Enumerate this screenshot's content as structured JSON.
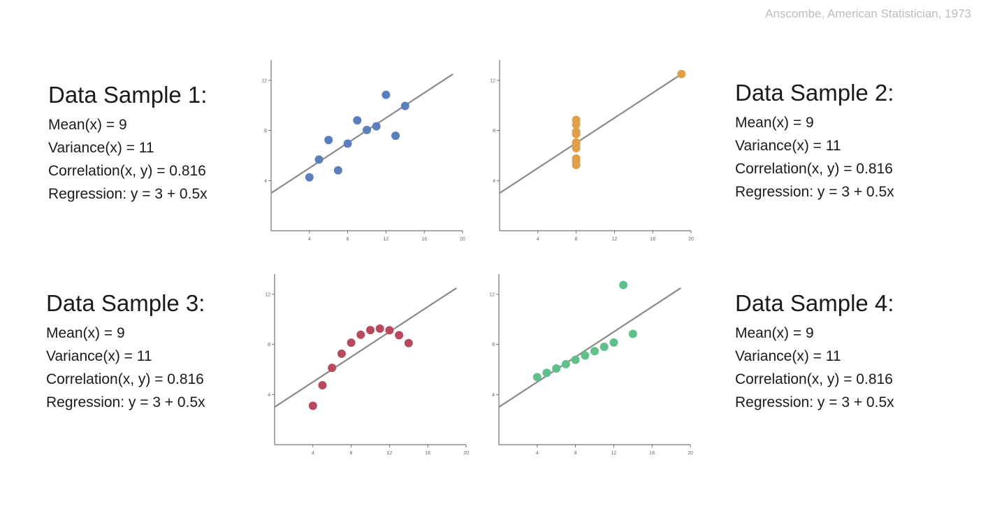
{
  "citation": "Anscombe, American Statistician, 1973",
  "samples": [
    {
      "title": "Data Sample 1:",
      "lines": [
        "Mean(x) = 9",
        "Variance(x) = 11",
        "Correlation(x, y) = 0.816",
        "Regression: y = 3 + 0.5x"
      ]
    },
    {
      "title": "Data Sample 2:",
      "lines": [
        "Mean(x) = 9",
        "Variance(x) = 11",
        "Correlation(x, y) = 0.816",
        "Regression: y = 3 + 0.5x"
      ]
    },
    {
      "title": "Data Sample 3:",
      "lines": [
        "Mean(x) = 9",
        "Variance(x) = 11",
        "Correlation(x, y) = 0.816",
        "Regression: y = 3 + 0.5x"
      ]
    },
    {
      "title": "Data Sample 4:",
      "lines": [
        "Mean(x) = 9",
        "Variance(x) = 11",
        "Correlation(x, y) = 0.816",
        "Regression: y = 3 + 0.5x"
      ]
    }
  ],
  "chart_data": [
    {
      "type": "scatter",
      "color": "#5b7fbd",
      "xlim": [
        0,
        20
      ],
      "ylim": [
        0,
        13.5
      ],
      "xticks": [
        4,
        8,
        12,
        16,
        20
      ],
      "yticks": [
        4,
        8,
        12
      ],
      "regression": {
        "intercept": 3,
        "slope": 0.5,
        "x_range": [
          0,
          19
        ]
      },
      "points": [
        [
          10,
          8.04
        ],
        [
          8,
          6.95
        ],
        [
          13,
          7.58
        ],
        [
          9,
          8.81
        ],
        [
          11,
          8.33
        ],
        [
          14,
          9.96
        ],
        [
          6,
          7.24
        ],
        [
          4,
          4.26
        ],
        [
          12,
          10.84
        ],
        [
          7,
          4.82
        ],
        [
          5,
          5.68
        ]
      ]
    },
    {
      "type": "scatter",
      "color": "#e0a04a",
      "xlim": [
        0,
        20
      ],
      "ylim": [
        0,
        13.5
      ],
      "xticks": [
        4,
        8,
        12,
        16,
        20
      ],
      "yticks": [
        4,
        8,
        12
      ],
      "regression": {
        "intercept": 3,
        "slope": 0.5,
        "x_range": [
          0,
          19
        ]
      },
      "points": [
        [
          8,
          6.58
        ],
        [
          8,
          5.76
        ],
        [
          8,
          7.71
        ],
        [
          8,
          8.84
        ],
        [
          8,
          8.47
        ],
        [
          8,
          7.04
        ],
        [
          8,
          5.25
        ],
        [
          19,
          12.5
        ],
        [
          8,
          5.56
        ],
        [
          8,
          7.91
        ],
        [
          8,
          6.89
        ]
      ]
    },
    {
      "type": "scatter",
      "color": "#b84a5e",
      "xlim": [
        0,
        20
      ],
      "ylim": [
        0,
        13.5
      ],
      "xticks": [
        4,
        8,
        12,
        16,
        20
      ],
      "yticks": [
        4,
        8,
        12
      ],
      "regression": {
        "intercept": 3,
        "slope": 0.5,
        "x_range": [
          0,
          19
        ]
      },
      "points": [
        [
          10,
          9.14
        ],
        [
          8,
          8.14
        ],
        [
          13,
          8.74
        ],
        [
          9,
          8.77
        ],
        [
          11,
          9.26
        ],
        [
          14,
          8.1
        ],
        [
          6,
          6.13
        ],
        [
          4,
          3.1
        ],
        [
          12,
          9.13
        ],
        [
          7,
          7.26
        ],
        [
          5,
          4.74
        ]
      ]
    },
    {
      "type": "scatter",
      "color": "#5fc08c",
      "xlim": [
        0,
        20
      ],
      "ylim": [
        0,
        13.5
      ],
      "xticks": [
        4,
        8,
        12,
        16,
        20
      ],
      "yticks": [
        4,
        8,
        12
      ],
      "regression": {
        "intercept": 3,
        "slope": 0.5,
        "x_range": [
          0,
          19
        ]
      },
      "points": [
        [
          10,
          7.46
        ],
        [
          8,
          6.77
        ],
        [
          13,
          12.74
        ],
        [
          9,
          7.11
        ],
        [
          11,
          7.81
        ],
        [
          14,
          8.84
        ],
        [
          6,
          6.08
        ],
        [
          4,
          5.39
        ],
        [
          12,
          8.15
        ],
        [
          7,
          6.42
        ],
        [
          5,
          5.73
        ]
      ]
    }
  ]
}
